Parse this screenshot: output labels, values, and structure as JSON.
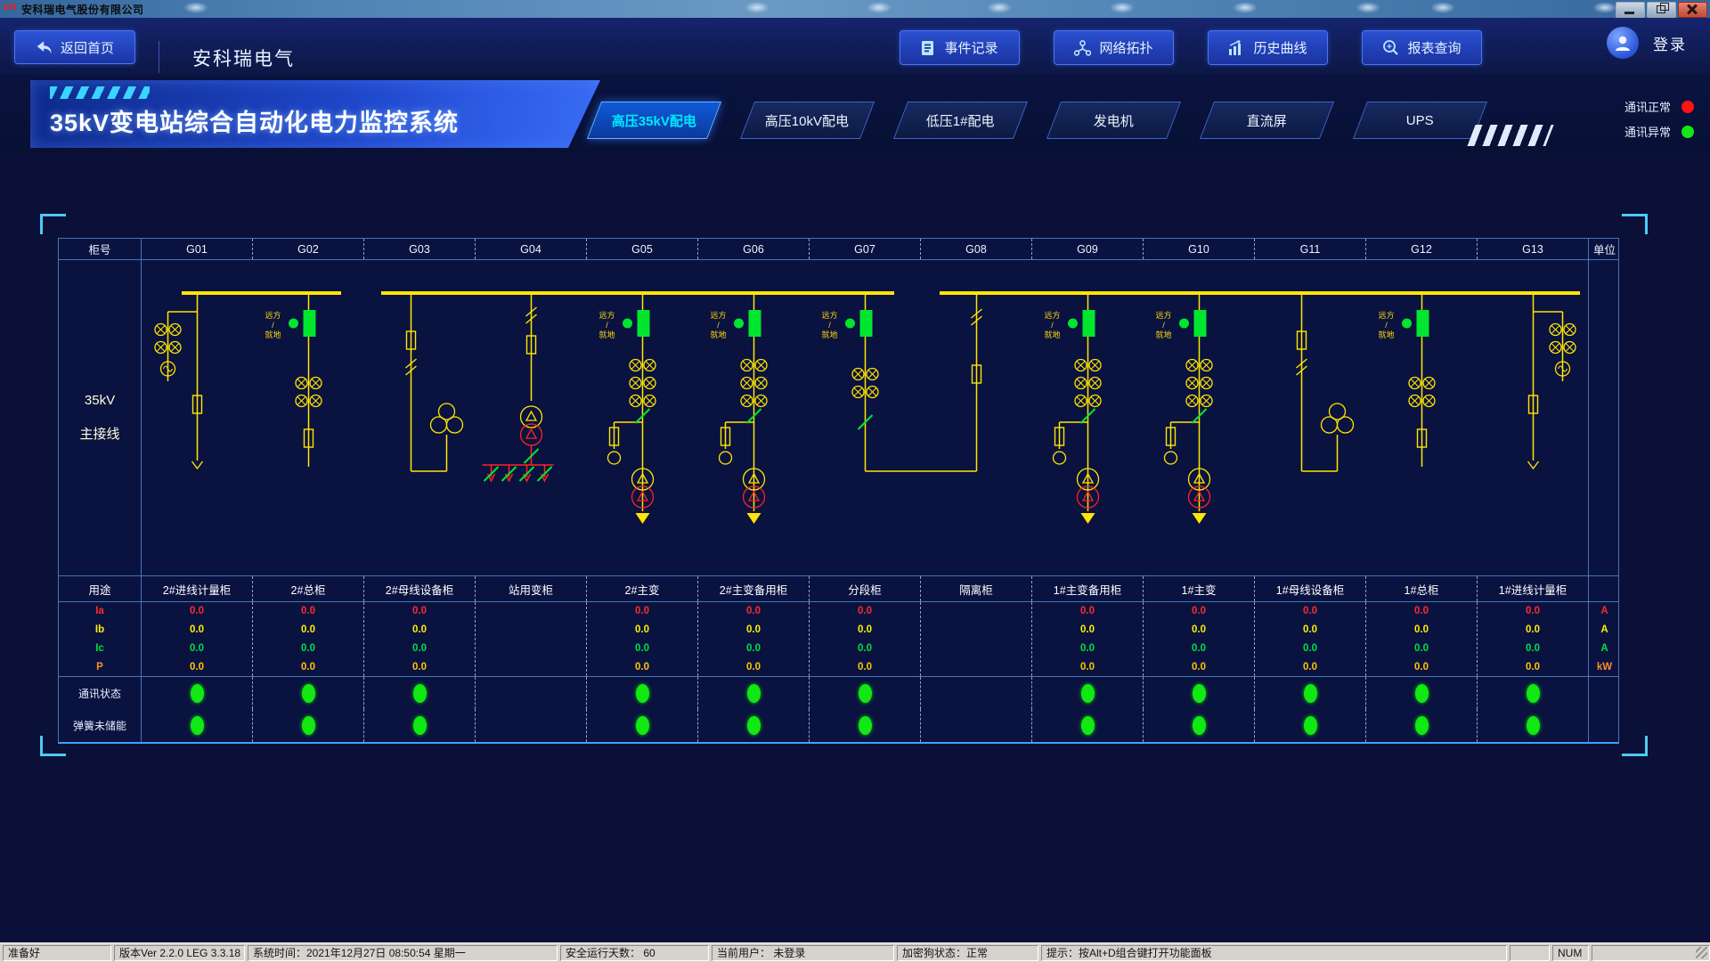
{
  "titlebar": {
    "title": "安科瑞电气股份有限公司"
  },
  "navbar": {
    "back_label": "返回首页",
    "brand": "安科瑞电气",
    "buttons": [
      {
        "label": "事件记录",
        "icon": "event-log-icon"
      },
      {
        "label": "网络拓扑",
        "icon": "network-topology-icon"
      },
      {
        "label": "历史曲线",
        "icon": "history-curve-icon"
      },
      {
        "label": "报表查询",
        "icon": "report-query-icon"
      }
    ],
    "login_label": "登录"
  },
  "header": {
    "title": "35kV变电站综合自动化电力监控系统",
    "tabs": [
      {
        "label": "高压35kV配电",
        "active": true
      },
      {
        "label": "高压10kV配电",
        "active": false
      },
      {
        "label": "低压1#配电",
        "active": false
      },
      {
        "label": "发电机",
        "active": false
      },
      {
        "label": "直流屏",
        "active": false
      },
      {
        "label": "UPS",
        "active": false
      }
    ],
    "comm_status": [
      {
        "label": "通讯正常",
        "color": "#ff1414"
      },
      {
        "label": "通讯异常",
        "color": "#17e617"
      }
    ]
  },
  "table": {
    "cabinet_header": "柜号",
    "unit_header": "单位",
    "purpose_header": "用途",
    "bus_label_lines": [
      "35kV",
      "主接线"
    ],
    "remote_local": "远方/就地",
    "meas_rows": [
      {
        "name": "Ia",
        "color": "#ff2a2a",
        "value_color": "#ff2a2a",
        "unit": "A"
      },
      {
        "name": "Ib",
        "color": "#ffee00",
        "value_color": "#ffee00",
        "unit": "A"
      },
      {
        "name": "Ic",
        "color": "#00e040",
        "value_color": "#00e040",
        "unit": "A"
      },
      {
        "name": "P",
        "color": "#ff8c2a",
        "value_color": "#ffc400",
        "unit": "kW"
      }
    ],
    "status_rows": [
      "通讯状态",
      "弹簧未储能"
    ],
    "columns": [
      {
        "id": "G01",
        "purpose": "2#进线计量柜",
        "values": [
          "0.0",
          "0.0",
          "0.0",
          "0.0"
        ],
        "comm": true,
        "spring": true,
        "diagram": "metering"
      },
      {
        "id": "G02",
        "purpose": "2#总柜",
        "values": [
          "0.0",
          "0.0",
          "0.0",
          "0.0"
        ],
        "comm": true,
        "spring": true,
        "diagram": "main_breaker"
      },
      {
        "id": "G03",
        "purpose": "2#母线设备柜",
        "values": [
          "0.0",
          "0.0",
          "0.0",
          "0.0"
        ],
        "comm": true,
        "spring": true,
        "diagram": "bus_equip"
      },
      {
        "id": "G04",
        "purpose": "站用变柜",
        "values": null,
        "comm": false,
        "spring": false,
        "diagram": "station_tx"
      },
      {
        "id": "G05",
        "purpose": "2#主变",
        "values": [
          "0.0",
          "0.0",
          "0.0",
          "0.0"
        ],
        "comm": true,
        "spring": true,
        "diagram": "main_tx"
      },
      {
        "id": "G06",
        "purpose": "2#主变备用柜",
        "values": [
          "0.0",
          "0.0",
          "0.0",
          "0.0"
        ],
        "comm": true,
        "spring": true,
        "diagram": "main_tx"
      },
      {
        "id": "G07",
        "purpose": "分段柜",
        "values": [
          "0.0",
          "0.0",
          "0.0",
          "0.0"
        ],
        "comm": true,
        "spring": true,
        "diagram": "section"
      },
      {
        "id": "G08",
        "purpose": "隔离柜",
        "values": null,
        "comm": false,
        "spring": false,
        "diagram": "isolation"
      },
      {
        "id": "G09",
        "purpose": "1#主变备用柜",
        "values": [
          "0.0",
          "0.0",
          "0.0",
          "0.0"
        ],
        "comm": true,
        "spring": true,
        "diagram": "main_tx"
      },
      {
        "id": "G10",
        "purpose": "1#主变",
        "values": [
          "0.0",
          "0.0",
          "0.0",
          "0.0"
        ],
        "comm": true,
        "spring": true,
        "diagram": "main_tx"
      },
      {
        "id": "G11",
        "purpose": "1#母线设备柜",
        "values": [
          "0.0",
          "0.0",
          "0.0",
          "0.0"
        ],
        "comm": true,
        "spring": true,
        "diagram": "bus_equip"
      },
      {
        "id": "G12",
        "purpose": "1#总柜",
        "values": [
          "0.0",
          "0.0",
          "0.0",
          "0.0"
        ],
        "comm": true,
        "spring": true,
        "diagram": "main_breaker"
      },
      {
        "id": "G13",
        "purpose": "1#进线计量柜",
        "values": [
          "0.0",
          "0.0",
          "0.0",
          "0.0"
        ],
        "comm": true,
        "spring": true,
        "diagram": "metering_mirror"
      }
    ]
  },
  "statusbar": {
    "items": [
      "准备好",
      "版本Ver 2.2.0 LEG 3.3.18",
      "系统时间：2021年12月27日  08:50:54  星期一",
      "安全运行天数：  60",
      "当前用户：  未登录",
      "加密狗状态：正常",
      "提示：按Alt+D组合键打开功能面板",
      "",
      "NUM",
      ""
    ]
  }
}
